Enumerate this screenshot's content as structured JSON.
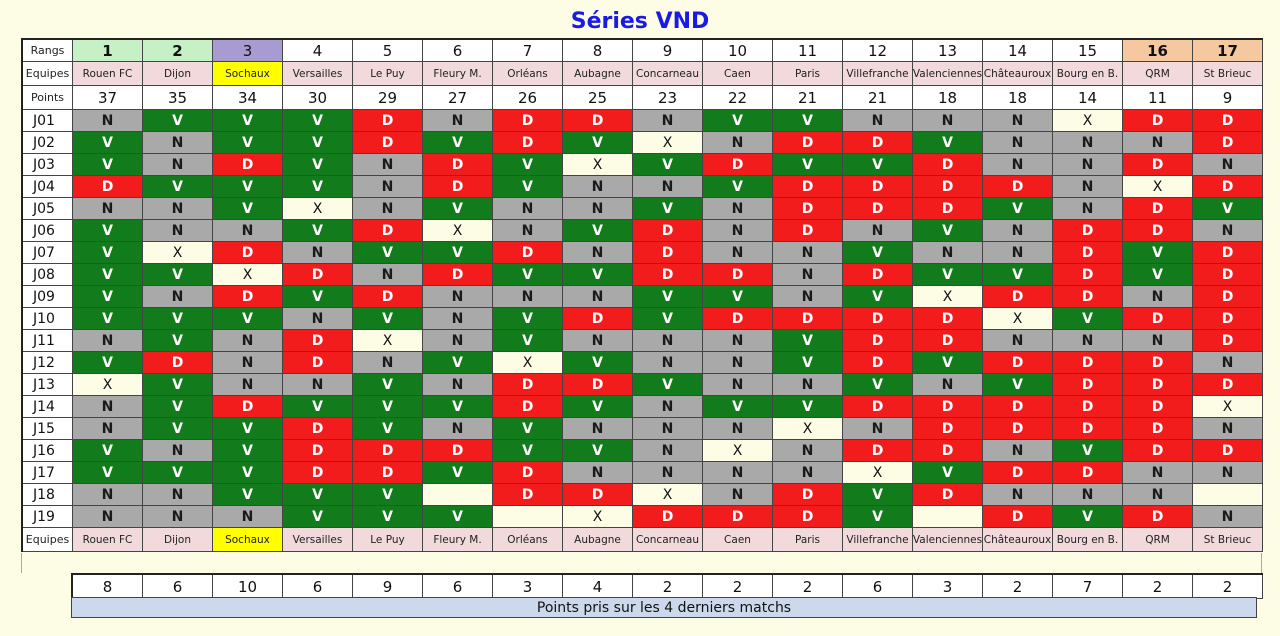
{
  "title": "Séries VND",
  "labels": {
    "rangs": "Rangs",
    "equipes": "Equipes",
    "points": "Points"
  },
  "colors": {
    "V": "#127c1d",
    "N": "#a9a9a9",
    "D": "#f21c1c",
    "rank_top": "#c6f1c6",
    "rank_mid": "#a89bd2",
    "rank_bottom": "#f6c8a0",
    "highlight_team": "#ffff00",
    "team_bg": "#f1d9dc"
  },
  "teams": [
    {
      "rank": "1",
      "name": "Rouen FC",
      "points": "37",
      "results": [
        "N",
        "V",
        "V",
        "D",
        "N",
        "V",
        "V",
        "V",
        "V",
        "V",
        "N",
        "V",
        "X",
        "N",
        "N",
        "V",
        "V",
        "N",
        "N"
      ],
      "recent": "8"
    },
    {
      "rank": "2",
      "name": "Dijon",
      "points": "35",
      "results": [
        "V",
        "N",
        "N",
        "V",
        "N",
        "N",
        "X",
        "V",
        "N",
        "V",
        "V",
        "D",
        "V",
        "V",
        "V",
        "N",
        "V",
        "N",
        "N"
      ],
      "recent": "6"
    },
    {
      "rank": "3",
      "name": "Sochaux",
      "points": "34",
      "results": [
        "V",
        "V",
        "D",
        "V",
        "V",
        "N",
        "D",
        "X",
        "D",
        "V",
        "N",
        "N",
        "N",
        "D",
        "V",
        "V",
        "V",
        "V",
        "N"
      ],
      "recent": "10"
    },
    {
      "rank": "4",
      "name": "Versailles",
      "points": "30",
      "results": [
        "V",
        "V",
        "V",
        "V",
        "X",
        "V",
        "N",
        "D",
        "V",
        "N",
        "D",
        "D",
        "N",
        "V",
        "D",
        "D",
        "D",
        "V",
        "V"
      ],
      "recent": "6"
    },
    {
      "rank": "5",
      "name": "Le Puy",
      "points": "29",
      "results": [
        "D",
        "D",
        "N",
        "N",
        "N",
        "D",
        "V",
        "N",
        "D",
        "V",
        "X",
        "N",
        "V",
        "V",
        "V",
        "D",
        "D",
        "V",
        "V"
      ],
      "recent": "9"
    },
    {
      "rank": "6",
      "name": "Fleury M.",
      "points": "27",
      "results": [
        "N",
        "V",
        "D",
        "D",
        "V",
        "X",
        "V",
        "D",
        "N",
        "N",
        "N",
        "V",
        "N",
        "V",
        "N",
        "D",
        "V",
        "",
        "V"
      ],
      "recent": "6"
    },
    {
      "rank": "7",
      "name": "Orléans",
      "points": "26",
      "results": [
        "D",
        "D",
        "V",
        "V",
        "N",
        "N",
        "D",
        "V",
        "N",
        "V",
        "V",
        "X",
        "D",
        "D",
        "V",
        "V",
        "D",
        "D",
        ""
      ],
      "recent": "3"
    },
    {
      "rank": "8",
      "name": "Aubagne",
      "points": "25",
      "results": [
        "D",
        "V",
        "X",
        "N",
        "N",
        "V",
        "N",
        "V",
        "N",
        "D",
        "N",
        "V",
        "D",
        "V",
        "N",
        "V",
        "N",
        "D",
        "X"
      ],
      "recent": "4"
    },
    {
      "rank": "9",
      "name": "Concarneau",
      "points": "23",
      "results": [
        "N",
        "X",
        "V",
        "N",
        "V",
        "D",
        "D",
        "D",
        "V",
        "V",
        "N",
        "N",
        "V",
        "N",
        "N",
        "N",
        "N",
        "X",
        "D"
      ],
      "recent": "2"
    },
    {
      "rank": "10",
      "name": "Caen",
      "points": "22",
      "results": [
        "V",
        "N",
        "D",
        "V",
        "N",
        "N",
        "N",
        "D",
        "V",
        "D",
        "N",
        "N",
        "N",
        "V",
        "N",
        "X",
        "N",
        "N",
        "D"
      ],
      "recent": "2"
    },
    {
      "rank": "11",
      "name": "Paris",
      "points": "21",
      "results": [
        "V",
        "D",
        "V",
        "D",
        "D",
        "D",
        "N",
        "N",
        "N",
        "D",
        "V",
        "V",
        "N",
        "V",
        "X",
        "N",
        "N",
        "D",
        "D"
      ],
      "recent": "2"
    },
    {
      "rank": "12",
      "name": "Villefranche",
      "points": "21",
      "results": [
        "N",
        "D",
        "V",
        "D",
        "D",
        "N",
        "V",
        "D",
        "V",
        "D",
        "D",
        "D",
        "V",
        "D",
        "N",
        "D",
        "X",
        "V",
        "V"
      ],
      "recent": "6"
    },
    {
      "rank": "13",
      "name": "Valenciennes",
      "points": "18",
      "results": [
        "N",
        "V",
        "D",
        "D",
        "D",
        "V",
        "N",
        "V",
        "X",
        "D",
        "D",
        "V",
        "N",
        "D",
        "D",
        "D",
        "V",
        "D",
        ""
      ],
      "recent": "3"
    },
    {
      "rank": "14",
      "name": "Châteauroux",
      "points": "18",
      "results": [
        "N",
        "N",
        "N",
        "D",
        "V",
        "N",
        "N",
        "V",
        "D",
        "X",
        "N",
        "D",
        "V",
        "D",
        "D",
        "N",
        "D",
        "N",
        "D"
      ],
      "recent": "2"
    },
    {
      "rank": "15",
      "name": "Bourg en B.",
      "points": "14",
      "results": [
        "X",
        "N",
        "N",
        "N",
        "N",
        "D",
        "D",
        "D",
        "D",
        "V",
        "N",
        "D",
        "D",
        "D",
        "D",
        "V",
        "D",
        "N",
        "V"
      ],
      "recent": "7"
    },
    {
      "rank": "16",
      "name": "QRM",
      "points": "11",
      "results": [
        "D",
        "N",
        "D",
        "X",
        "D",
        "D",
        "V",
        "V",
        "N",
        "D",
        "N",
        "D",
        "D",
        "D",
        "D",
        "D",
        "N",
        "N",
        "D"
      ],
      "recent": "2"
    },
    {
      "rank": "17",
      "name": "St Brieuc",
      "points": "9",
      "results": [
        "D",
        "D",
        "N",
        "D",
        "V",
        "N",
        "D",
        "D",
        "D",
        "D",
        "D",
        "N",
        "D",
        "X",
        "N",
        "D",
        "N",
        "",
        "N"
      ],
      "recent": "2"
    }
  ],
  "journees": [
    "J01",
    "J02",
    "J03",
    "J04",
    "J05",
    "J06",
    "J07",
    "J08",
    "J09",
    "J10",
    "J11",
    "J12",
    "J13",
    "J14",
    "J15",
    "J16",
    "J17",
    "J18",
    "J19"
  ],
  "caption": "Points pris sur les 4 derniers matchs"
}
